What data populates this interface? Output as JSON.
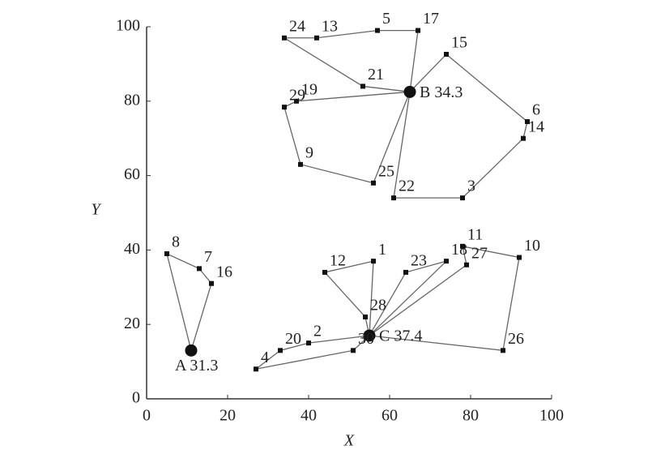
{
  "chart_data": {
    "type": "scatter",
    "xlabel": "X",
    "ylabel": "Y",
    "xlim": [
      0,
      100
    ],
    "ylim": [
      0,
      100
    ],
    "xticks": [
      0,
      20,
      40,
      60,
      80,
      100
    ],
    "yticks": [
      0,
      20,
      40,
      60,
      80,
      100
    ],
    "routes": [
      {
        "depot": {
          "label": "A 31.3",
          "x": 11,
          "y": 13
        },
        "stops": [
          {
            "label": "8",
            "x": 5,
            "y": 39
          },
          {
            "label": "7",
            "x": 13,
            "y": 35
          },
          {
            "label": "16",
            "x": 16,
            "y": 31
          }
        ]
      },
      {
        "depot": {
          "label": "B 34.3",
          "x": 65,
          "y": 82.5
        },
        "stops": [
          {
            "label": "17",
            "x": 67,
            "y": 99
          },
          {
            "label": "5",
            "x": 57,
            "y": 99
          },
          {
            "label": "13",
            "x": 42,
            "y": 97
          },
          {
            "label": "24",
            "x": 34,
            "y": 97
          },
          {
            "label": "21",
            "x": 53.4,
            "y": 84
          }
        ]
      },
      {
        "depot": {
          "label": "B 34.3",
          "x": 65,
          "y": 82.5
        },
        "stops": [
          {
            "label": "15",
            "x": 74,
            "y": 92.6
          },
          {
            "label": "6",
            "x": 94,
            "y": 74.5
          },
          {
            "label": "14",
            "x": 93,
            "y": 70
          },
          {
            "label": "3",
            "x": 78,
            "y": 54
          },
          {
            "label": "22",
            "x": 61,
            "y": 54
          }
        ]
      },
      {
        "depot": {
          "label": "B 34.3",
          "x": 65,
          "y": 82.5
        },
        "stops": [
          {
            "label": "19",
            "x": 37,
            "y": 80
          },
          {
            "label": "29",
            "x": 34,
            "y": 78.4
          },
          {
            "label": "9",
            "x": 38,
            "y": 63
          },
          {
            "label": "25",
            "x": 56,
            "y": 58
          }
        ]
      },
      {
        "depot": {
          "label": "C 37.4",
          "x": 55,
          "y": 17
        },
        "stops": [
          {
            "label": "1",
            "x": 56,
            "y": 37
          },
          {
            "label": "12",
            "x": 44,
            "y": 34
          },
          {
            "label": "28",
            "x": 54,
            "y": 22
          }
        ]
      },
      {
        "depot": {
          "label": "C 37.4",
          "x": 55,
          "y": 17
        },
        "stops": [
          {
            "label": "23",
            "x": 64,
            "y": 34
          },
          {
            "label": "18",
            "x": 74,
            "y": 37
          }
        ]
      },
      {
        "depot": {
          "label": "C 37.4",
          "x": 55,
          "y": 17
        },
        "stops": [
          {
            "label": "27",
            "x": 79,
            "y": 36
          },
          {
            "label": "11",
            "x": 78,
            "y": 41
          },
          {
            "label": "10",
            "x": 92,
            "y": 38
          },
          {
            "label": "26",
            "x": 88,
            "y": 13
          }
        ]
      },
      {
        "depot": {
          "label": "C 37.4",
          "x": 55,
          "y": 17
        },
        "stops": [
          {
            "label": "2",
            "x": 40,
            "y": 15
          },
          {
            "label": "20",
            "x": 33,
            "y": 13
          },
          {
            "label": "4",
            "x": 27,
            "y": 8
          },
          {
            "label": "30",
            "x": 51,
            "y": 13
          }
        ]
      }
    ]
  }
}
